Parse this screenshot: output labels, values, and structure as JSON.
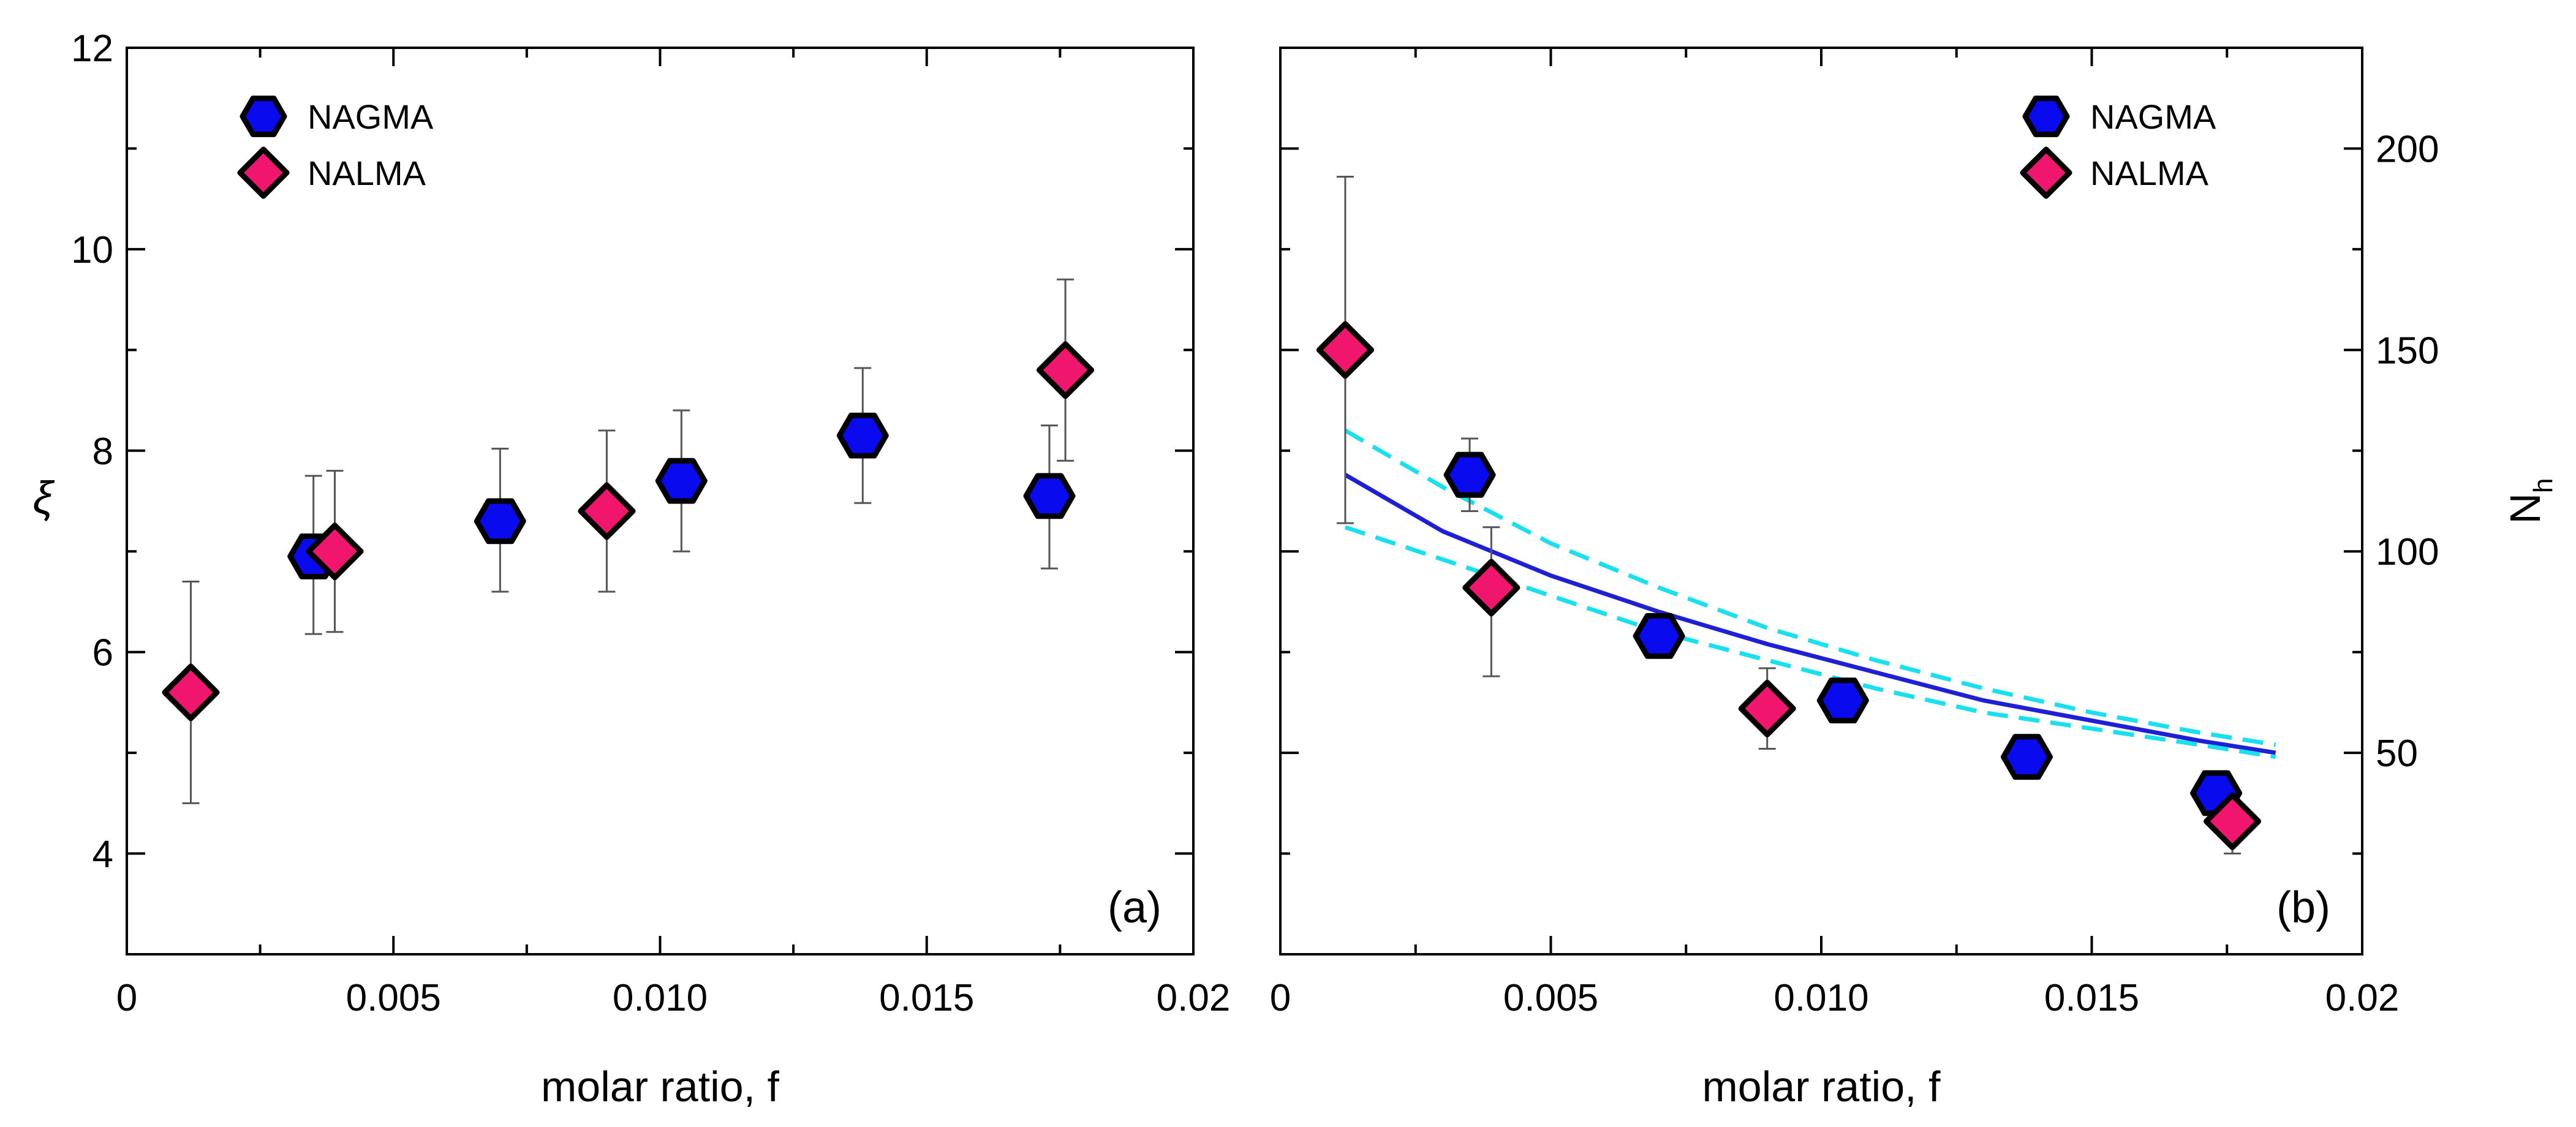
{
  "chart_data": [
    {
      "panel_label": "(a)",
      "type": "scatter",
      "xlabel": "molar ratio, f",
      "ylabel": "ξ",
      "xlim": [
        0,
        0.02
      ],
      "ylim": [
        3,
        12
      ],
      "x_ticks": [
        0,
        0.005,
        0.01,
        0.015,
        0.02
      ],
      "x_tick_labels": [
        "0",
        "0.005",
        "0.010",
        "0.015",
        "0.02"
      ],
      "y_ticks": [
        4,
        6,
        8,
        10,
        12
      ],
      "y_tick_labels": [
        "4",
        "6",
        "8",
        "10",
        "12"
      ],
      "legend_position": "top-left",
      "series": [
        {
          "name": "NAGMA",
          "marker": "hexagon",
          "color": "#0a0aee",
          "points": [
            {
              "x": 0.0035,
              "y": 6.95,
              "err_low": 6.18,
              "err_high": 7.75
            },
            {
              "x": 0.007,
              "y": 7.3,
              "err_low": 6.6,
              "err_high": 8.02
            },
            {
              "x": 0.0104,
              "y": 7.7,
              "err_low": 7.0,
              "err_high": 8.4
            },
            {
              "x": 0.0138,
              "y": 8.15,
              "err_low": 7.48,
              "err_high": 8.82
            },
            {
              "x": 0.0173,
              "y": 7.55,
              "err_low": 6.83,
              "err_high": 8.25
            }
          ]
        },
        {
          "name": "NALMA",
          "marker": "diamond",
          "color": "#f0166e",
          "points": [
            {
              "x": 0.0012,
              "y": 5.6,
              "err_low": 4.5,
              "err_high": 6.7
            },
            {
              "x": 0.0039,
              "y": 7.0,
              "err_low": 6.2,
              "err_high": 7.8
            },
            {
              "x": 0.009,
              "y": 7.4,
              "err_low": 6.6,
              "err_high": 8.2
            },
            {
              "x": 0.0176,
              "y": 8.8,
              "err_low": 7.9,
              "err_high": 9.7
            }
          ]
        }
      ]
    },
    {
      "panel_label": "(b)",
      "type": "scatter",
      "xlabel": "molar ratio, f",
      "ylabel": "N",
      "ylabel_subscript": "h",
      "y_axis_side": "right",
      "xlim": [
        0,
        0.02
      ],
      "ylim": [
        0,
        225
      ],
      "x_ticks": [
        0,
        0.005,
        0.01,
        0.015,
        0.02
      ],
      "x_tick_labels": [
        "0",
        "0.005",
        "0.010",
        "0.015",
        "0.02"
      ],
      "y_ticks": [
        50,
        100,
        150,
        200
      ],
      "y_tick_labels": [
        "50",
        "100",
        "150",
        "200"
      ],
      "legend_position": "top-right",
      "series": [
        {
          "name": "NAGMA",
          "marker": "hexagon",
          "color": "#0a0aee",
          "points": [
            {
              "x": 0.0035,
              "y": 119,
              "err_low": 110,
              "err_high": 128
            },
            {
              "x": 0.007,
              "y": 79,
              "err_low": 74,
              "err_high": 84
            },
            {
              "x": 0.0104,
              "y": 63,
              "err_low": 60,
              "err_high": 66
            },
            {
              "x": 0.0138,
              "y": 49,
              "err_low": 47,
              "err_high": 51
            },
            {
              "x": 0.0173,
              "y": 40,
              "err_low": 37,
              "err_high": 43
            }
          ]
        },
        {
          "name": "NALMA",
          "marker": "diamond",
          "color": "#f0166e",
          "points": [
            {
              "x": 0.0012,
              "y": 150,
              "err_low": 107,
              "err_high": 193
            },
            {
              "x": 0.0039,
              "y": 91,
              "err_low": 69,
              "err_high": 106
            },
            {
              "x": 0.009,
              "y": 61,
              "err_low": 51,
              "err_high": 71
            },
            {
              "x": 0.0176,
              "y": 33,
              "err_low": 25,
              "err_high": 40
            }
          ]
        }
      ],
      "fit_lines": [
        {
          "name": "fit",
          "style": "solid",
          "color": "#1f1fd6",
          "x": [
            0.0012,
            0.003,
            0.005,
            0.007,
            0.009,
            0.011,
            0.013,
            0.015,
            0.017,
            0.0184
          ],
          "y": [
            119,
            105,
            94,
            85,
            77,
            70,
            63,
            58,
            53,
            50
          ]
        },
        {
          "name": "upper bound",
          "style": "dashed",
          "color": "#18e0ef",
          "x": [
            0.0012,
            0.003,
            0.005,
            0.007,
            0.009,
            0.011,
            0.013,
            0.015,
            0.017,
            0.0184
          ],
          "y": [
            130,
            116,
            102,
            91,
            81,
            73,
            66,
            60,
            55,
            52
          ]
        },
        {
          "name": "lower bound",
          "style": "dashed",
          "color": "#18e0ef",
          "x": [
            0.0012,
            0.003,
            0.005,
            0.007,
            0.009,
            0.011,
            0.013,
            0.015,
            0.017,
            0.0184
          ],
          "y": [
            106,
            98,
            89,
            80,
            73,
            66,
            60,
            56,
            52,
            49
          ]
        }
      ]
    }
  ]
}
